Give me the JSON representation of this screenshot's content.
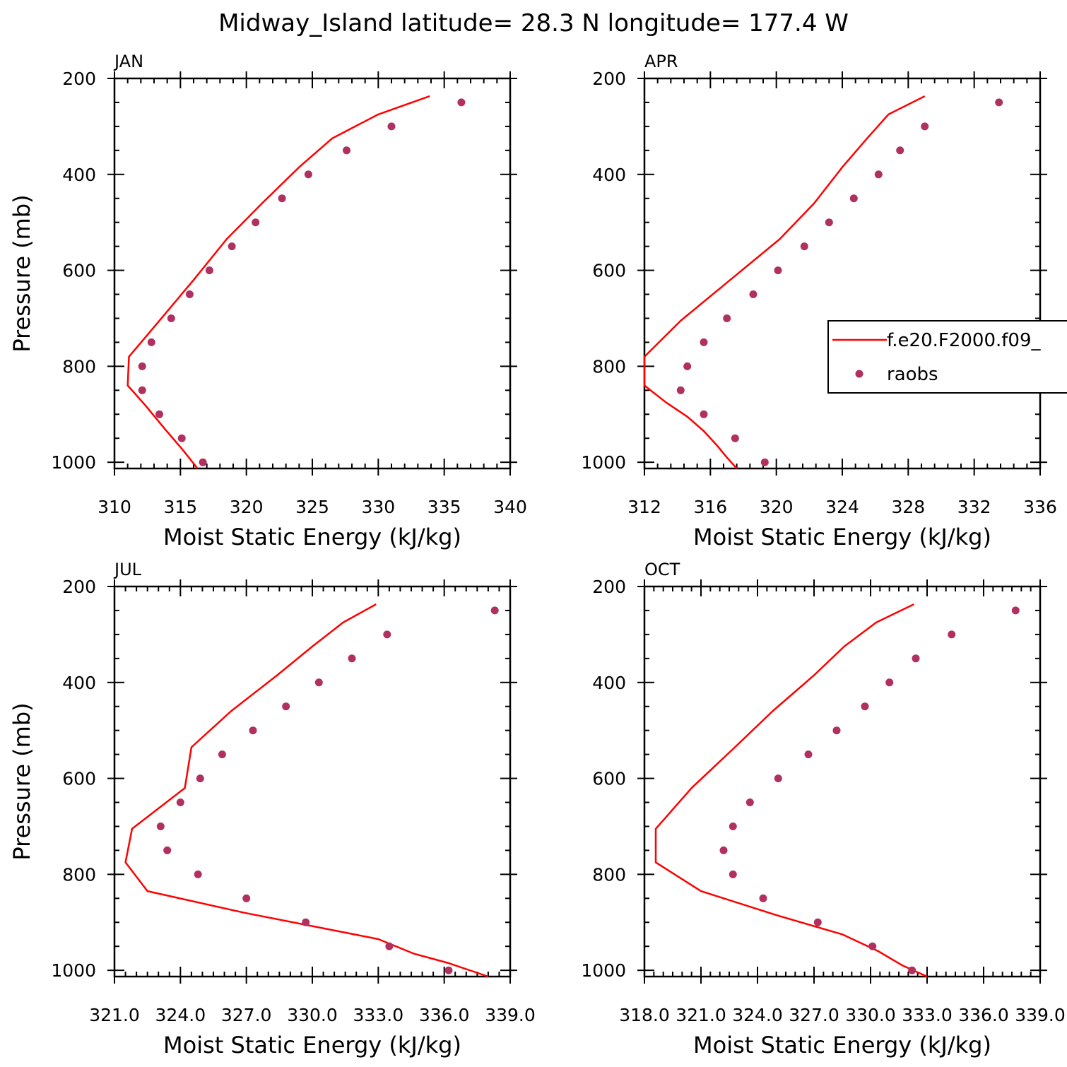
{
  "title": "Midway_Island  latitude= 28.3 N longitude= 177.4 W",
  "legend": {
    "model_label": "f.e20.F2000.f09_",
    "obs_label": "raobs"
  },
  "colors": {
    "model": "#ff0000",
    "obs": "#b03060",
    "axis": "#000000"
  },
  "chart_data": [
    {
      "type": "line",
      "panel": "JAN",
      "xlabel": "Moist Static Energy (kJ/kg)",
      "ylabel": "Pressure (mb)",
      "xlim": [
        310,
        340
      ],
      "xticks": [
        310,
        315,
        320,
        325,
        330,
        335,
        340
      ],
      "xtick_labels": [
        "310",
        "315",
        "320",
        "325",
        "330",
        "335",
        "340"
      ],
      "ylim": [
        1013,
        200
      ],
      "yticks": [
        200,
        400,
        600,
        800,
        1000
      ],
      "ytick_labels": [
        "200",
        "400",
        "600",
        "800",
        "1000"
      ],
      "model": {
        "p": [
          237,
          275,
          325,
          385,
          460,
          535,
          620,
          705,
          780,
          840,
          880,
          930,
          975,
          1013
        ],
        "mse": [
          333.9,
          330.0,
          326.5,
          324.0,
          321.2,
          318.5,
          316.0,
          313.4,
          311.1,
          311.0,
          312.3,
          313.8,
          315.2,
          316.3
        ]
      },
      "obs": {
        "p": [
          250,
          300,
          350,
          400,
          450,
          500,
          550,
          600,
          650,
          700,
          750,
          800,
          850,
          900,
          950,
          1000
        ],
        "mse": [
          336.3,
          331.0,
          327.6,
          324.7,
          322.7,
          320.7,
          318.9,
          317.2,
          315.7,
          314.3,
          312.8,
          312.1,
          312.1,
          313.4,
          315.1,
          316.7
        ]
      }
    },
    {
      "type": "line",
      "panel": "APR",
      "xlabel": "Moist Static Energy (kJ/kg)",
      "ylabel": "",
      "xlim": [
        312,
        336
      ],
      "xticks": [
        312,
        316,
        320,
        324,
        328,
        332,
        336
      ],
      "xtick_labels": [
        "312",
        "316",
        "320",
        "324",
        "328",
        "332",
        "336"
      ],
      "ylim": [
        1013,
        200
      ],
      "yticks": [
        200,
        400,
        600,
        800,
        1000
      ],
      "ytick_labels": [
        "200",
        "400",
        "600",
        "800",
        "1000"
      ],
      "model": {
        "p": [
          237,
          275,
          325,
          385,
          460,
          535,
          620,
          705,
          780,
          840,
          875,
          905,
          935,
          965,
          990,
          1013
        ],
        "mse": [
          329.0,
          326.8,
          325.5,
          324.0,
          322.3,
          320.2,
          317.2,
          314.2,
          312.0,
          312.0,
          313.3,
          314.6,
          315.6,
          316.4,
          317.0,
          317.6
        ]
      },
      "obs": {
        "p": [
          250,
          300,
          350,
          400,
          450,
          500,
          550,
          600,
          650,
          700,
          750,
          800,
          850,
          900,
          950,
          1000
        ],
        "mse": [
          333.5,
          329.0,
          327.5,
          326.2,
          324.7,
          323.2,
          321.7,
          320.1,
          318.6,
          317.0,
          315.6,
          314.6,
          314.2,
          315.6,
          317.5,
          319.3
        ]
      }
    },
    {
      "type": "line",
      "panel": "JUL",
      "xlabel": "Moist Static Energy (kJ/kg)",
      "ylabel": "Pressure (mb)",
      "xlim": [
        321,
        339
      ],
      "xticks": [
        321,
        324,
        327,
        330,
        333,
        336,
        339
      ],
      "xtick_labels": [
        "321.0",
        "324.0",
        "327.0",
        "330.0",
        "333.0",
        "336.0",
        "339.0"
      ],
      "ylim": [
        1013,
        200
      ],
      "yticks": [
        200,
        400,
        600,
        800,
        1000
      ],
      "ytick_labels": [
        "200",
        "400",
        "600",
        "800",
        "1000"
      ],
      "model": {
        "p": [
          237,
          275,
          325,
          385,
          460,
          535,
          620,
          705,
          775,
          835,
          880,
          935,
          965,
          985,
          1013
        ],
        "mse": [
          332.9,
          331.4,
          330.0,
          328.4,
          326.3,
          324.5,
          324.2,
          321.8,
          321.5,
          322.5,
          326.9,
          333.0,
          334.6,
          336.2,
          338.0
        ]
      },
      "obs": {
        "p": [
          250,
          300,
          350,
          400,
          450,
          500,
          550,
          600,
          650,
          700,
          750,
          800,
          850,
          900,
          950,
          1000
        ],
        "mse": [
          338.3,
          333.4,
          331.8,
          330.3,
          328.8,
          327.3,
          325.9,
          324.9,
          324.0,
          323.1,
          323.4,
          324.8,
          327.0,
          329.7,
          333.5,
          336.2
        ]
      }
    },
    {
      "type": "line",
      "panel": "OCT",
      "xlabel": "Moist Static Energy (kJ/kg)",
      "ylabel": "",
      "xlim": [
        318,
        339
      ],
      "xticks": [
        318,
        321,
        324,
        327,
        330,
        333,
        336,
        339
      ],
      "xtick_labels": [
        "318.0",
        "321.0",
        "324.0",
        "327.0",
        "330.0",
        "333.0",
        "336.0",
        "339.0"
      ],
      "ylim": [
        1013,
        200
      ],
      "yticks": [
        200,
        400,
        600,
        800,
        1000
      ],
      "ytick_labels": [
        "200",
        "400",
        "600",
        "800",
        "1000"
      ],
      "model": {
        "p": [
          237,
          275,
          325,
          385,
          460,
          535,
          620,
          705,
          775,
          835,
          885,
          925,
          960,
          990,
          1013
        ],
        "mse": [
          332.3,
          330.3,
          328.6,
          327.0,
          324.8,
          322.8,
          320.5,
          318.6,
          318.6,
          321.0,
          325.0,
          328.5,
          330.4,
          331.7,
          333.0
        ]
      },
      "obs": {
        "p": [
          250,
          300,
          350,
          400,
          450,
          500,
          550,
          600,
          650,
          700,
          750,
          800,
          850,
          900,
          950,
          1000
        ],
        "mse": [
          337.7,
          334.3,
          332.4,
          331.0,
          329.7,
          328.2,
          326.7,
          325.1,
          323.6,
          322.7,
          322.2,
          322.7,
          324.3,
          327.2,
          330.1,
          332.2
        ]
      }
    }
  ]
}
